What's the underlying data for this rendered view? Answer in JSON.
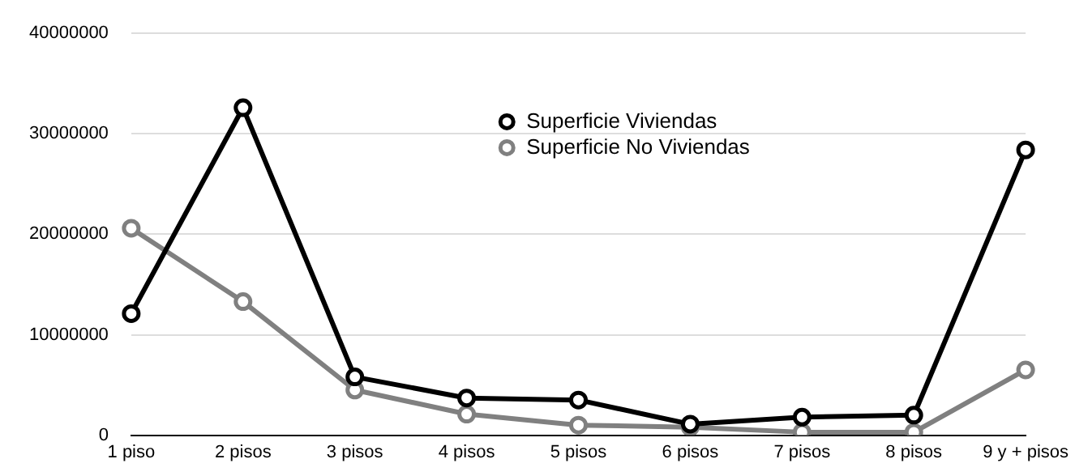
{
  "chart_data": {
    "type": "line",
    "categories": [
      "1 piso",
      "2 pisos",
      "3 pisos",
      "4 pisos",
      "5 pisos",
      "6 pisos",
      "7 pisos",
      "8 pisos",
      "9 y + pisos"
    ],
    "series": [
      {
        "name": "Superficie Viviendas",
        "color": "#000000",
        "values": [
          12100000,
          32600000,
          5800000,
          3700000,
          3500000,
          1100000,
          1800000,
          2000000,
          28400000
        ]
      },
      {
        "name": "Superficie No Viviendas",
        "color": "#808080",
        "values": [
          20600000,
          13300000,
          4500000,
          2100000,
          1000000,
          800000,
          300000,
          300000,
          6500000
        ]
      }
    ],
    "ylim": [
      0,
      40000000
    ],
    "yticks": [
      0,
      10000000,
      20000000,
      30000000,
      40000000
    ],
    "grid": "y",
    "legend": "top",
    "marker": "circle",
    "line_style": "solid"
  }
}
